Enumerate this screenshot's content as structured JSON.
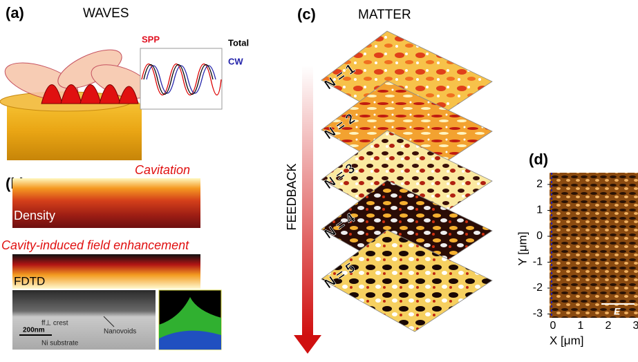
{
  "panel_a": {
    "label": "(a)",
    "title": "WAVES",
    "inset": {
      "spp": "SPP",
      "total": "Total",
      "cw": "CW"
    }
  },
  "panel_b": {
    "label": "(b)",
    "cavitation": "Cavitation",
    "density": "Density",
    "enhancement": "Cavity-induced field enhancement",
    "fdtd": "FDTD",
    "sem": {
      "crest": "ff⊥ crest",
      "nanovoids": "Nanovoids",
      "scale": "200nm",
      "substrate": "Ni substrate"
    }
  },
  "panel_c": {
    "label": "(c)",
    "title": "MATTER",
    "arrow": "FEEDBACK",
    "layers": [
      "N = 1",
      "N = 2",
      "N = 3",
      "N = 4",
      "N = 5"
    ]
  },
  "panel_d": {
    "label": "(d)",
    "ylabel": "Y [μm]",
    "xlabel": "X [μm]",
    "yticks": [
      2,
      1,
      0,
      -1,
      -2,
      -3
    ],
    "xticks": [
      0,
      1,
      2,
      3
    ],
    "field": "E"
  }
}
